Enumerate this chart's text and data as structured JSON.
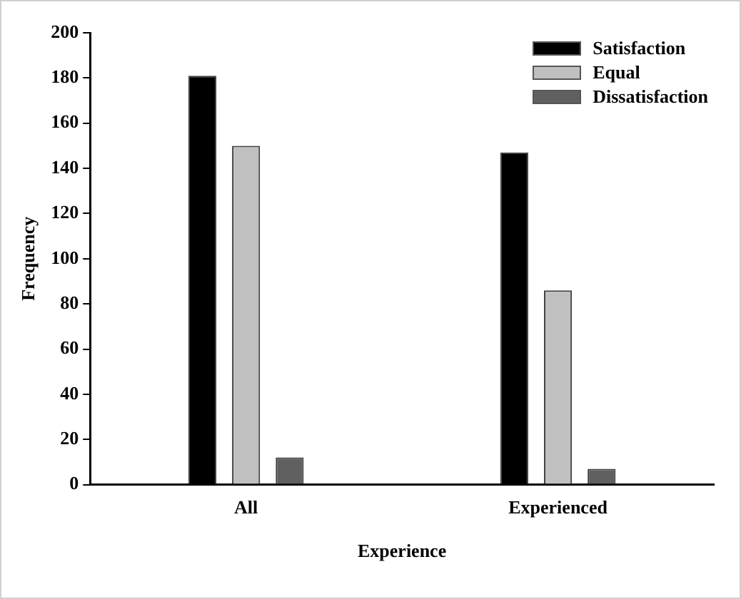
{
  "chart_data": {
    "type": "bar",
    "xlabel": "Experience",
    "ylabel": "Frequency",
    "categories": [
      "All",
      "Experienced"
    ],
    "series": [
      {
        "name": "Satisfaction",
        "color": "#000000",
        "values": [
          181,
          147
        ]
      },
      {
        "name": "Equal",
        "color": "#c0c0c0",
        "values": [
          150,
          86
        ]
      },
      {
        "name": "Dissatisfaction",
        "color": "#606060",
        "values": [
          12,
          7
        ]
      }
    ],
    "ylim": [
      0,
      200
    ],
    "yticks": [
      0,
      20,
      40,
      60,
      80,
      100,
      120,
      140,
      160,
      180,
      200
    ],
    "grid": false,
    "legend": "top right"
  }
}
